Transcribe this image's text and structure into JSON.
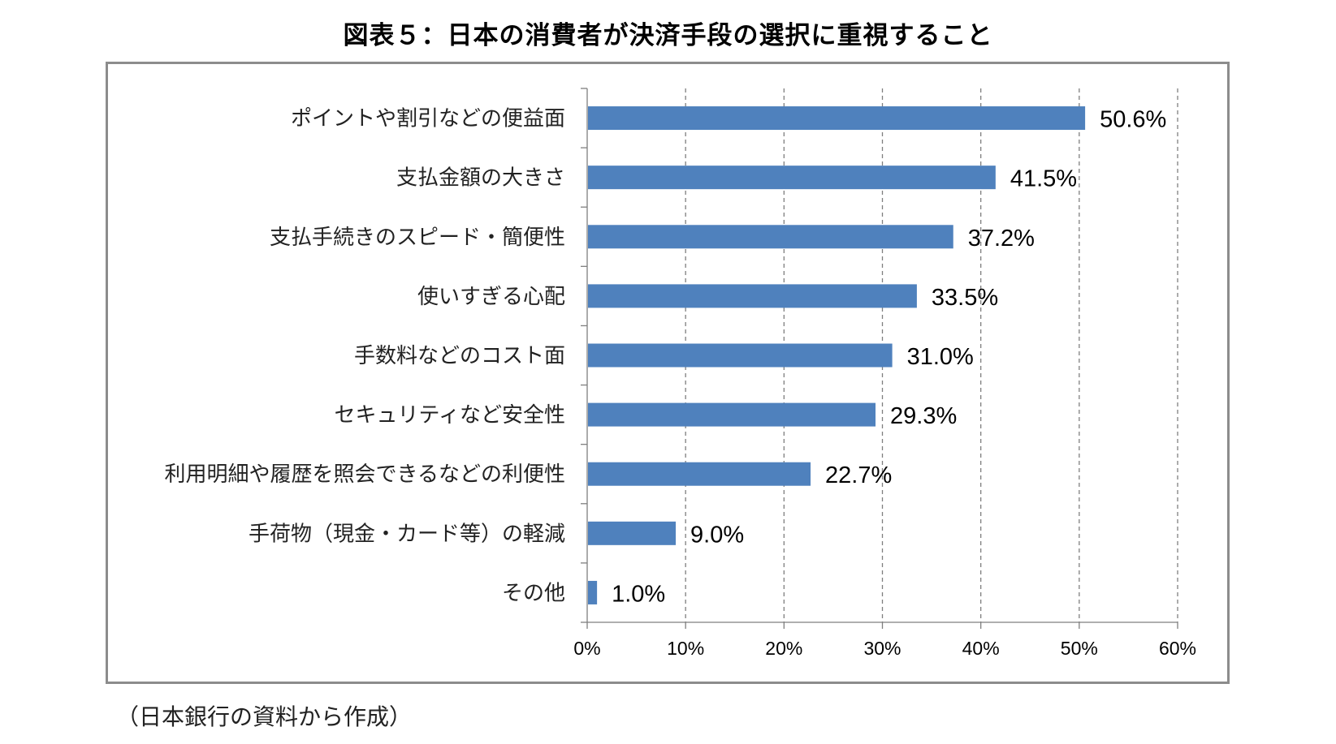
{
  "title": "図表５：日本の消費者が決済手段の選択に重視すること",
  "source_note": "（日本銀行の資料から作成）",
  "colors": {
    "bar": "#4f81bd",
    "grid": "#7f7f7f",
    "frame": "#8c8c8c"
  },
  "chart_data": {
    "type": "bar",
    "orientation": "horizontal",
    "categories": [
      "ポイントや割引などの便益面",
      "支払金額の大きさ",
      "支払手続きのスピード・簡便性",
      "使いすぎる心配",
      "手数料などのコスト面",
      "セキュリティなど安全性",
      "利用明細や履歴を照会できるなどの利便性",
      "手荷物（現金・カード等）の軽減",
      "その他"
    ],
    "values": [
      50.6,
      41.5,
      37.2,
      33.5,
      31.0,
      29.3,
      22.7,
      9.0,
      1.0
    ],
    "value_labels": [
      "50.6%",
      "41.5%",
      "37.2%",
      "33.5%",
      "31.0%",
      "29.3%",
      "22.7%",
      "9.0%",
      "1.0%"
    ],
    "xlim": [
      0,
      60
    ],
    "x_ticks": [
      0,
      10,
      20,
      30,
      40,
      50,
      60
    ],
    "x_tick_labels": [
      "0%",
      "10%",
      "20%",
      "30%",
      "40%",
      "50%",
      "60%"
    ],
    "grid": "vertical-dashed",
    "legend": "none"
  }
}
